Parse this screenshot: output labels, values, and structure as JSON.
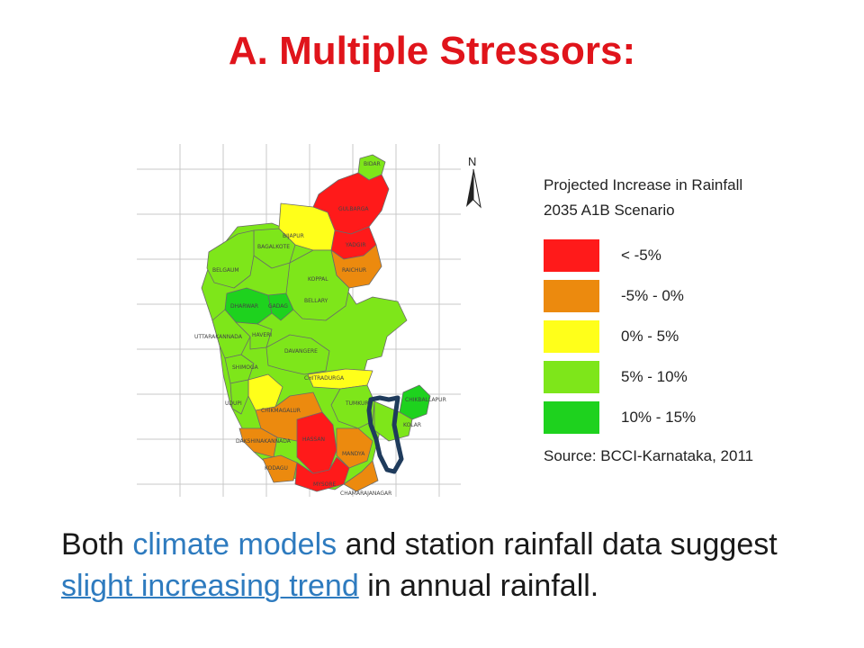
{
  "slide": {
    "title": "A. Multiple Stressors:"
  },
  "legend": {
    "title_line1": "Projected Increase in Rainfall",
    "title_line2": "2035 A1B Scenario",
    "items": [
      {
        "label": "< -5%",
        "color": "#ff1a1a"
      },
      {
        "label": "-5% - 0%",
        "color": "#ec8a0e"
      },
      {
        "label": "0% - 5%",
        "color": "#ffff1a"
      },
      {
        "label": "5% - 10%",
        "color": "#7ee61a"
      },
      {
        "label": "10% - 15%",
        "color": "#1ed21e"
      }
    ],
    "source": "Source: BCCI-Karnataka, 2011"
  },
  "map": {
    "north_label": "N",
    "districts": [
      "BIDAR",
      "GULBARGA",
      "BIJAPUR",
      "YADGIR",
      "BAGALKOTE",
      "RAICHUR",
      "BELGAUM",
      "KOPPAL",
      "DHARWAR",
      "GADAG",
      "BELLARY",
      "UTTARAKANNADA",
      "HAVERI",
      "DAVANGERE",
      "CHITRADURGA",
      "SHIMOGA",
      "UDUPI",
      "CHIKMAGALUR",
      "TUMKUR",
      "CHIKBALLAPUR",
      "KOLAR",
      "DAKSHINAKANNADA",
      "HASSAN",
      "MANDYA",
      "KODAGU",
      "MYSORE",
      "CHAMARAJANAGAR"
    ],
    "outline_color": "#1f3b5c"
  },
  "caption": {
    "p1": "Both ",
    "h1": "climate models",
    "p2": " and station rainfall data suggest ",
    "h2": "slight increasing trend",
    "p3": " in annual rainfall."
  }
}
